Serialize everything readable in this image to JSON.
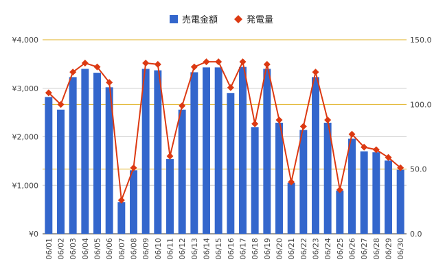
{
  "chart_data": {
    "type": "bar",
    "categories": [
      "06/01",
      "06/02",
      "06/03",
      "06/04",
      "06/05",
      "06/06",
      "06/07",
      "06/08",
      "06/09",
      "06/10",
      "06/11",
      "06/12",
      "06/13",
      "06/14",
      "06/15",
      "06/16",
      "06/17",
      "06/18",
      "06/19",
      "06/20",
      "06/21",
      "06/22",
      "06/23",
      "06/24",
      "06/25",
      "06/26",
      "06/27",
      "06/28",
      "06/29",
      "06/30"
    ],
    "series": [
      {
        "name": "売電金額",
        "type": "bar",
        "axis": "left",
        "color": "#3366cc",
        "values": [
          2820,
          2560,
          3230,
          3400,
          3320,
          3020,
          650,
          1310,
          3400,
          3370,
          1540,
          2560,
          3330,
          3430,
          3430,
          2900,
          3440,
          2200,
          3400,
          2290,
          1050,
          2140,
          3230,
          2290,
          890,
          1960,
          1700,
          1680,
          1510,
          1320
        ]
      },
      {
        "name": "発電量",
        "type": "line",
        "axis": "right",
        "color": "#dc3912",
        "values": [
          109,
          100,
          125,
          132,
          129,
          117,
          26,
          51,
          132,
          131,
          60,
          99,
          129,
          133,
          133,
          113,
          133,
          85,
          131,
          88,
          40,
          83,
          125,
          88,
          34,
          77,
          67,
          65,
          59,
          51
        ]
      }
    ],
    "y_left": {
      "min": 0,
      "max": 4000,
      "ticks": [
        "¥0",
        "¥1,000",
        "¥2,000",
        "¥3,000",
        "¥4,000"
      ]
    },
    "y_right": {
      "min": 0,
      "max": 150,
      "ticks": [
        "0.0",
        "50.0",
        "100.0",
        "150.0"
      ]
    },
    "legend": {
      "position": "top"
    },
    "grid": true,
    "title": "",
    "xlabel": "",
    "ylabel": ""
  }
}
